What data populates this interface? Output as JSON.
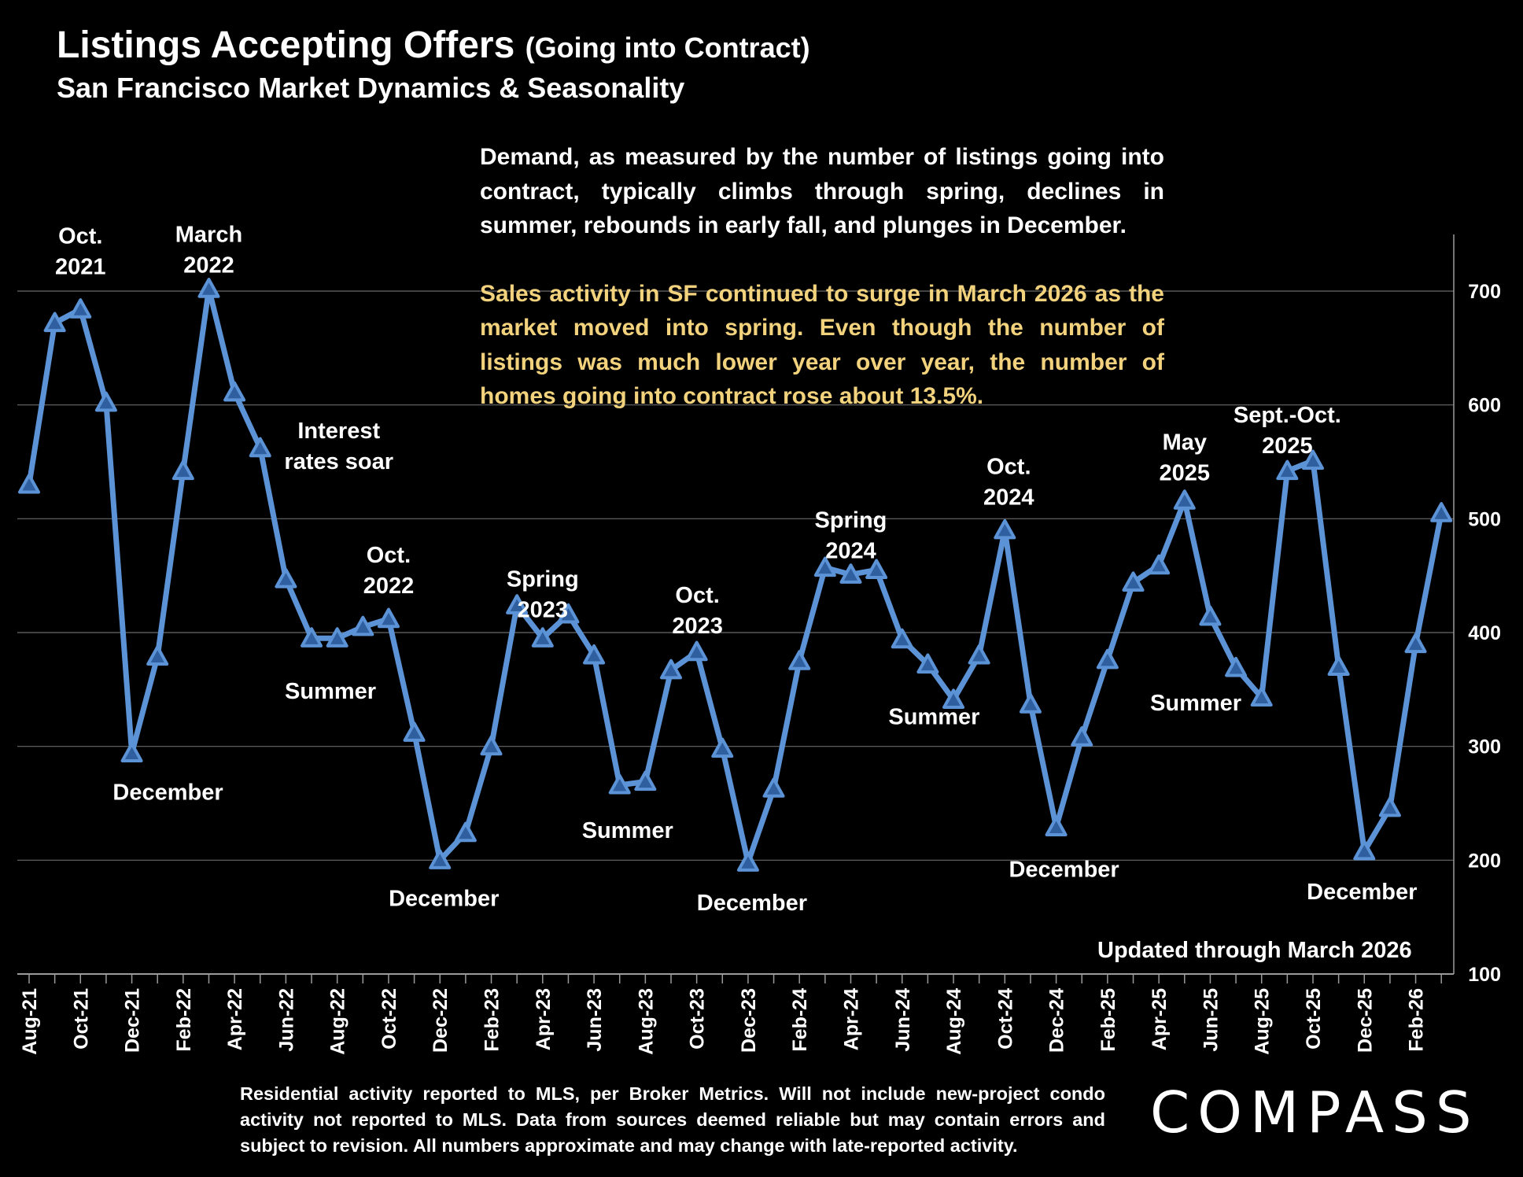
{
  "header": {
    "title": "Listings Accepting Offers",
    "title_paren": "(Going into Contract)",
    "subtitle": "San Francisco Market Dynamics & Seasonality"
  },
  "commentary": {
    "p1": "Demand, as measured by the number of listings going into contract, typically climbs through spring, declines in summer, rebounds in early fall, and plunges in December.",
    "p2": "Sales activity in SF continued to surge in March 2026 as the market moved into spring. Even though the number of listings was much lower year over year, the number of homes going into contract rose about 13.5%."
  },
  "updated_label": "Updated through March 2026",
  "footnote": "Residential activity reported to MLS, per Broker Metrics. Will not include new-project condo activity not reported to MLS. Data from sources deemed reliable but may contain errors and subject to revision. All numbers approximate and may change with late-reported activity.",
  "logo_text": "COMPASS",
  "colors": {
    "line": "#5b93d6",
    "marker_fill": "#2f5f9e",
    "highlight_text": "#f2d27c",
    "gridline": "#6a6a6a"
  },
  "chart_data": {
    "type": "line",
    "y_axis_position": "right",
    "ylim": [
      100,
      700
    ],
    "yticks": [
      100,
      200,
      300,
      400,
      500,
      600,
      700
    ],
    "grid": true,
    "marker": "triangle",
    "x": [
      "Aug-21",
      "Sep-21",
      "Oct-21",
      "Nov-21",
      "Dec-21",
      "Jan-22",
      "Feb-22",
      "Mar-22",
      "Apr-22",
      "May-22",
      "Jun-22",
      "Jul-22",
      "Aug-22",
      "Sep-22",
      "Oct-22",
      "Nov-22",
      "Dec-22",
      "Jan-23",
      "Feb-23",
      "Mar-23",
      "Apr-23",
      "May-23",
      "Jun-23",
      "Jul-23",
      "Aug-23",
      "Sep-23",
      "Oct-23",
      "Nov-23",
      "Dec-23",
      "Jan-24",
      "Feb-24",
      "Mar-24",
      "Apr-24",
      "May-24",
      "Jun-24",
      "Jul-24",
      "Aug-24",
      "Sep-24",
      "Oct-24",
      "Nov-24",
      "Dec-24",
      "Jan-25",
      "Feb-25",
      "Mar-25",
      "Apr-25",
      "May-25",
      "Jun-25",
      "Jul-25",
      "Aug-25",
      "Sep-25",
      "Oct-25",
      "Nov-25",
      "Dec-25",
      "Jan-26",
      "Feb-26",
      "Mar-26"
    ],
    "x_tick_labels": [
      "Aug-21",
      "Oct-21",
      "Dec-21",
      "Feb-22",
      "Apr-22",
      "Jun-22",
      "Aug-22",
      "Oct-22",
      "Dec-22",
      "Feb-23",
      "Apr-23",
      "Jun-23",
      "Aug-23",
      "Oct-23",
      "Dec-23",
      "Feb-24",
      "Apr-24",
      "Jun-24",
      "Aug-24",
      "Oct-24",
      "Dec-24",
      "Feb-25",
      "Apr-25",
      "Jun-25",
      "Aug-25",
      "Oct-25",
      "Dec-25",
      "Feb-26"
    ],
    "values": [
      530,
      672,
      684,
      602,
      294,
      379,
      542,
      702,
      611,
      562,
      447,
      395,
      395,
      405,
      412,
      312,
      200,
      224,
      300,
      424,
      395,
      416,
      380,
      266,
      269,
      367,
      383,
      298,
      198,
      263,
      375,
      457,
      451,
      455,
      394,
      372,
      341,
      380,
      490,
      337,
      229,
      308,
      376,
      444,
      459,
      516,
      414,
      369,
      343,
      542,
      551,
      370,
      208,
      246,
      390,
      505
    ],
    "annotations": [
      {
        "text": "Oct.\n2021",
        "index": 2
      },
      {
        "text": "March\n2022",
        "index": 7
      },
      {
        "text": "Interest\nrates soar",
        "index": 9
      },
      {
        "text": "December",
        "index": 4
      },
      {
        "text": "Oct.\n2022",
        "index": 14
      },
      {
        "text": "Summer",
        "index": 11
      },
      {
        "text": "December",
        "index": 16
      },
      {
        "text": "Spring\n2023",
        "index": 20
      },
      {
        "text": "Summer",
        "index": 23
      },
      {
        "text": "Oct.\n2023",
        "index": 26
      },
      {
        "text": "December",
        "index": 28
      },
      {
        "text": "Spring\n2024",
        "index": 32
      },
      {
        "text": "Summer",
        "index": 35
      },
      {
        "text": "Oct.\n2024",
        "index": 38
      },
      {
        "text": "December",
        "index": 40
      },
      {
        "text": "May\n2025",
        "index": 45
      },
      {
        "text": "Sept.-Oct.\n2025",
        "index": 49
      },
      {
        "text": "Summer",
        "index": 47
      },
      {
        "text": "December",
        "index": 52
      }
    ]
  }
}
